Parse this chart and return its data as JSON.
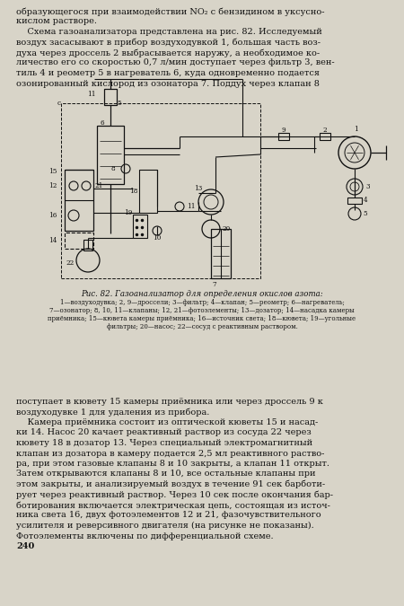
{
  "page_bg": "#d8d4c8",
  "text_color": "#111111",
  "fig_width": 4.5,
  "fig_height": 6.75,
  "top_text": [
    [
      "образующегося при взаимодействии NO₂ с бензидином в уксусно-",
      0
    ],
    [
      "кислом растворе.",
      0
    ],
    [
      "    Схема газоанализатора представлена на рис. 82. Исследуемый",
      0
    ],
    [
      "воздух засасывают в прибор воздуходувкой 1, большая часть воз-",
      0
    ],
    [
      "духа через дроссель 2 выбрасывается наружу, а необходимое ко-",
      0
    ],
    [
      "личество его со скоростью 0,7 л/мин доступает через фильтр 3, вен-",
      0
    ],
    [
      "тиль 4 и реометр 5 в нагреватель 6, куда одновременно подается",
      0
    ],
    [
      "озонированный кислород из озонатора 7. Поддух через клапан 8",
      0
    ]
  ],
  "caption_title": "Рис. 82. Газоанализатор для определения окислов азота:",
  "caption_lines": [
    "1—воздуходувка; 2, 9—дроссели; 3—фильтр; 4—клапан; 5—реометр; 6—нагреватель;",
    "7—озонатор; 8, 10, 11—клапаны; 12, 21—фотоэлементы; 13—дозатор; 14—насадка камеры",
    "приёмника; 15—кювета камеры приёмника; 16—источник света; 18—кювета; 19—угольные",
    "фильтры; 20—насос; 22—сосуд с реактивным раствором."
  ],
  "bottom_text": [
    "поступает в кювету 15 камеры приёмника или через дроссель 9 к",
    "воздуходувке 1 для удаления из прибора.",
    "    Камера приёмника состоит из оптической кюветы 15 и насад-",
    "ки 14. Насос 20 качает реактивный раствор из сосуда 22 через",
    "кювету 18 в дозатор 13. Через специальный электромагнитный",
    "клапан из дозатора в камеру подается 2,5 мл реактивного раство-",
    "ра, при этом газовые клапаны 8 и 10 закрыты, а клапан 11 открыт.",
    "Затем открываются клапаны 8 и 10, все остальные клапаны при",
    "этом закрыты, и анализируемый воздух в течение 91 сек барботи-",
    "рует через реактивный раствор. Через 10 сек после окончания бар-",
    "ботирования включается электрическая цепь, состоящая из источ-",
    "ника света 16, двух фотоэлементов 12 и 21, фазочувствительного",
    "усилителя и реверсивного двигателя (на рисунке не показаны).",
    "Фотоэлементы включены по дифференциальной схеме.",
    "240"
  ]
}
